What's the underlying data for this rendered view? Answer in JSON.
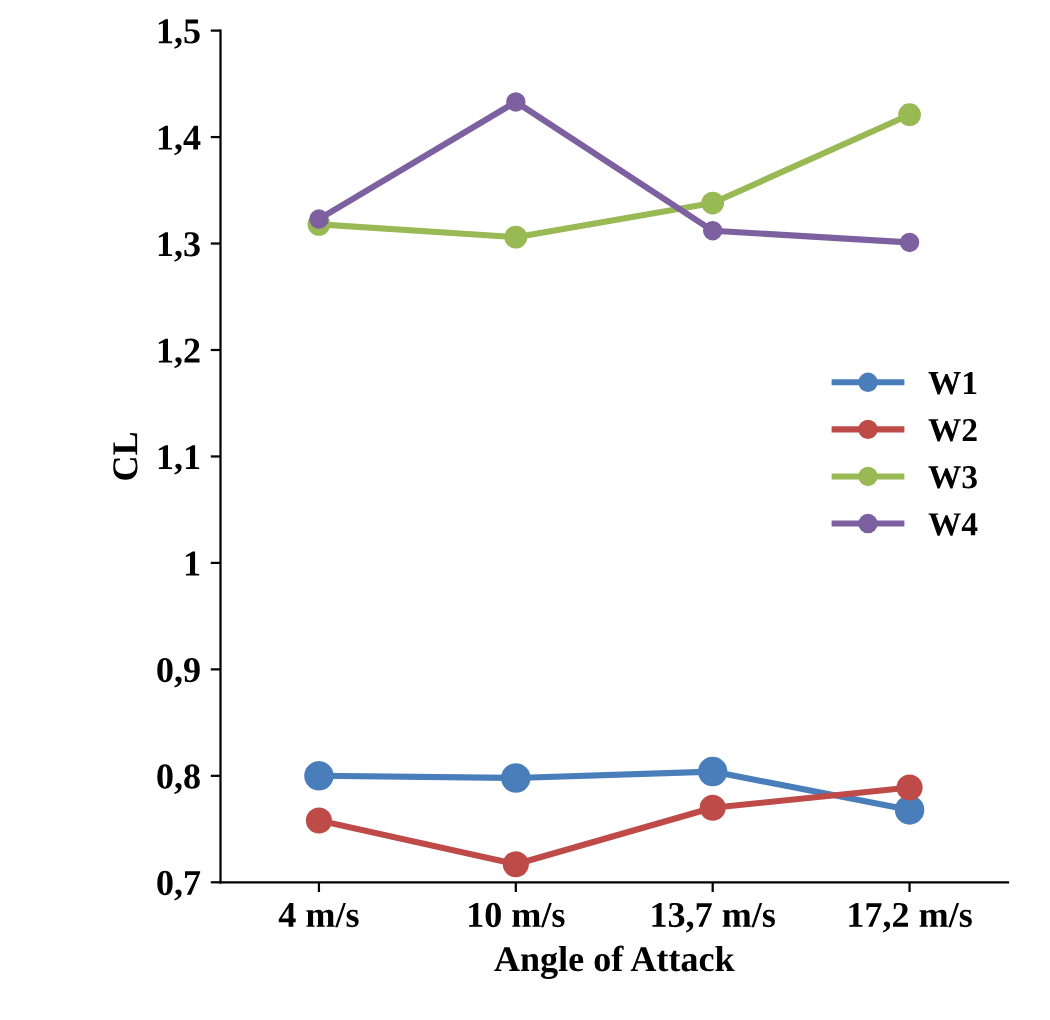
{
  "chart_data": {
    "type": "line",
    "xlabel": "Angle of Attack",
    "ylabel": "CL",
    "categories": [
      "4 m/s",
      "10 m/s",
      "13,7 m/s",
      "17,2 m/s"
    ],
    "series": [
      {
        "name": "W1",
        "color": "#4a7ebb",
        "values": [
          0.8,
          0.798,
          0.804,
          0.768
        ]
      },
      {
        "name": "W2",
        "color": "#be4b48",
        "values": [
          0.758,
          0.717,
          0.77,
          0.789
        ]
      },
      {
        "name": "W3",
        "color": "#98b954",
        "values": [
          1.318,
          1.306,
          1.338,
          1.421
        ]
      },
      {
        "name": "W4",
        "color": "#7d60a0",
        "values": [
          1.323,
          1.433,
          1.312,
          1.301
        ]
      }
    ],
    "ylim": [
      0.7,
      1.5
    ],
    "yticks": [
      {
        "value": 0.7,
        "label": "0,7"
      },
      {
        "value": 0.8,
        "label": "0,8"
      },
      {
        "value": 0.9,
        "label": "0,9"
      },
      1,
      {
        "value": 1.1,
        "label": "1,1"
      },
      {
        "value": 1.2,
        "label": "1,2"
      },
      {
        "value": 1.3,
        "label": "1,3"
      },
      {
        "value": 1.4,
        "label": "1,4"
      },
      {
        "value": 1.5,
        "label": "1,5"
      }
    ],
    "marker": "circle",
    "line_style": "solid",
    "legend": "right",
    "grid": false
  }
}
